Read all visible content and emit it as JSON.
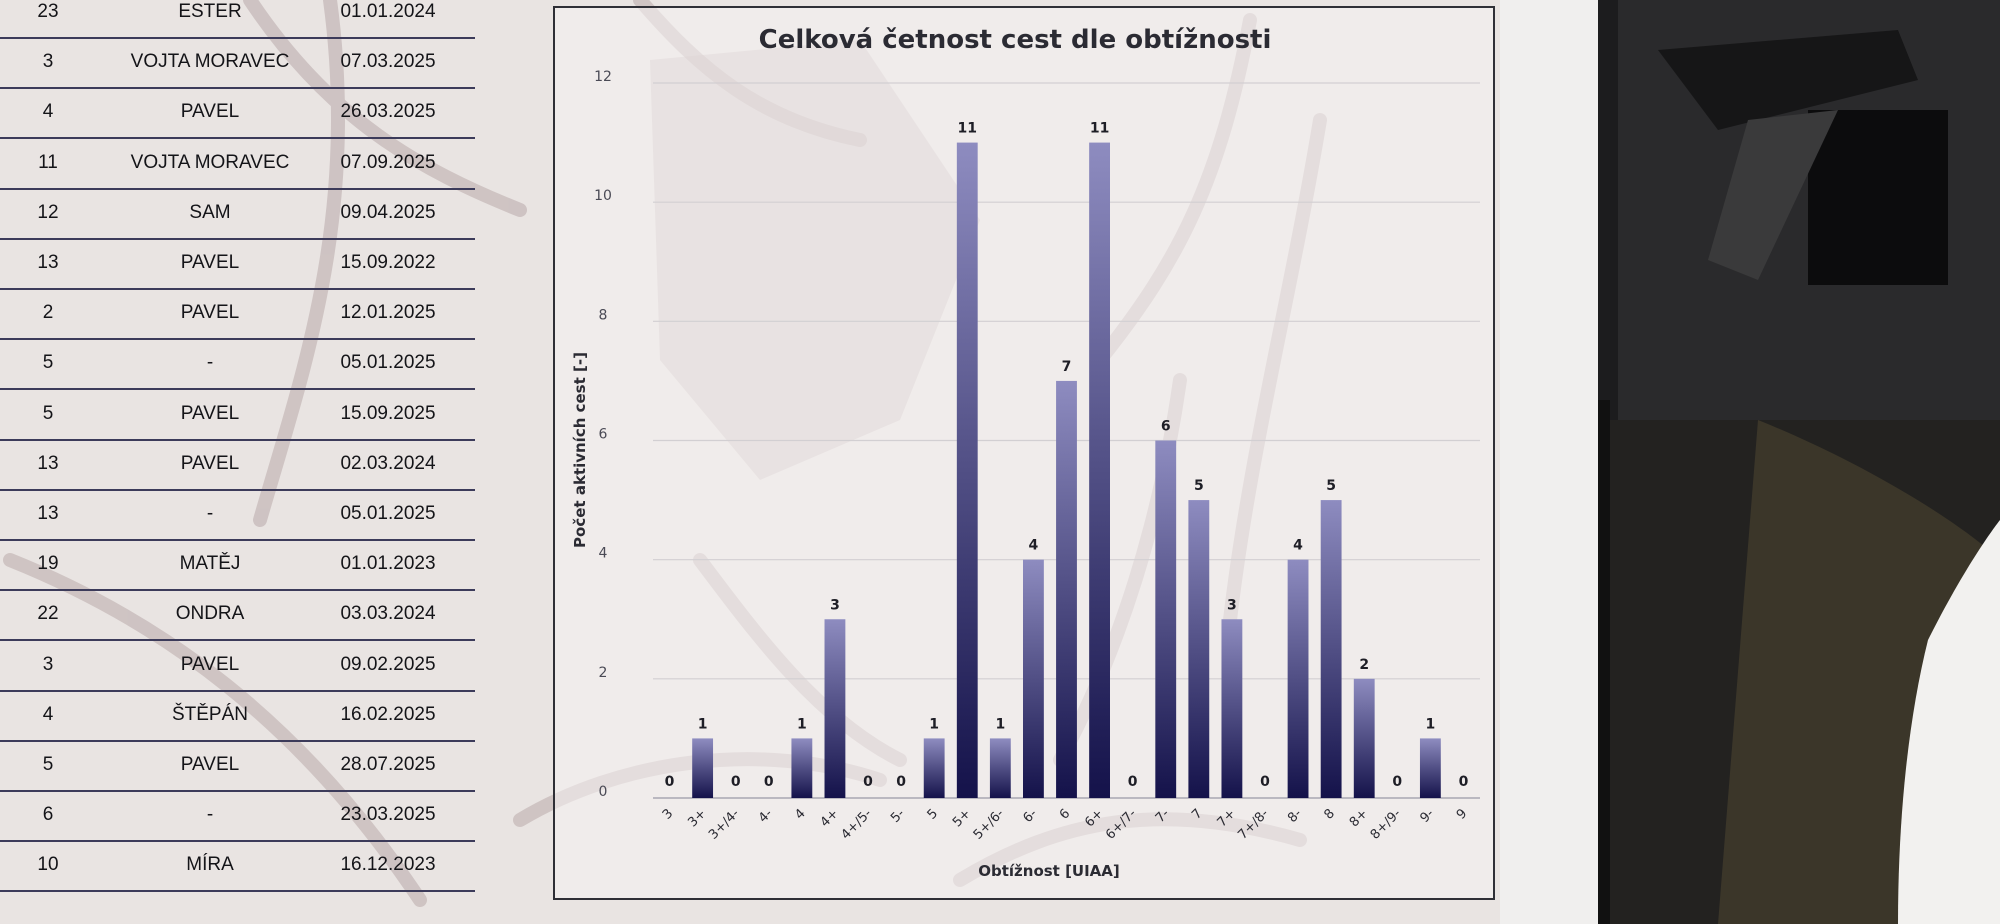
{
  "table": {
    "rows": [
      {
        "count": "23",
        "name": "ESTER",
        "date": "01.01.2024"
      },
      {
        "count": "3",
        "name": "VOJTA MORAVEC",
        "date": "07.03.2025"
      },
      {
        "count": "4",
        "name": "PAVEL",
        "date": "26.03.2025"
      },
      {
        "count": "11",
        "name": "VOJTA MORAVEC",
        "date": "07.09.2025"
      },
      {
        "count": "12",
        "name": "SAM",
        "date": "09.04.2025"
      },
      {
        "count": "13",
        "name": "PAVEL",
        "date": "15.09.2022"
      },
      {
        "count": "2",
        "name": "PAVEL",
        "date": "12.01.2025"
      },
      {
        "count": "5",
        "name": "-",
        "date": "05.01.2025"
      },
      {
        "count": "5",
        "name": "PAVEL",
        "date": "15.09.2025"
      },
      {
        "count": "13",
        "name": "PAVEL",
        "date": "02.03.2024"
      },
      {
        "count": "13",
        "name": "-",
        "date": "05.01.2025"
      },
      {
        "count": "19",
        "name": "MATĚJ",
        "date": "01.01.2023"
      },
      {
        "count": "22",
        "name": "ONDRA",
        "date": "03.03.2024"
      },
      {
        "count": "3",
        "name": "PAVEL",
        "date": "09.02.2025"
      },
      {
        "count": "4",
        "name": "ŠTĚPÁN",
        "date": "16.02.2025"
      },
      {
        "count": "5",
        "name": "PAVEL",
        "date": "28.07.2025"
      },
      {
        "count": "6",
        "name": "-",
        "date": "23.03.2025"
      },
      {
        "count": "10",
        "name": "MÍRA",
        "date": "16.12.2023"
      }
    ]
  },
  "colors": {
    "bar_top": "#8e8cc0",
    "bar_bottom": "#14124a",
    "panel_border": "#2f2f36",
    "table_rule": "#3c3b5a",
    "background": "#e9e4e2"
  },
  "chart_data": {
    "type": "bar",
    "title": "Celková četnost cest dle obtížnosti",
    "xlabel": "Obtížnost [UIAA]",
    "ylabel": "Počet aktivních cest [-]",
    "ylim": [
      0,
      12
    ],
    "yticks": [
      "0",
      "2",
      "4",
      "6",
      "8",
      "10",
      "12"
    ],
    "grid": true,
    "legend": "none",
    "categories": [
      "3",
      "3+",
      "3+/4-",
      "4-",
      "4",
      "4+",
      "4+/5-",
      "5-",
      "5",
      "5+",
      "5+/6-",
      "6-",
      "6",
      "6+",
      "6+/7-",
      "7-",
      "7",
      "7+",
      "7+/8-",
      "8-",
      "8",
      "8+",
      "8+/9-",
      "9-",
      "9"
    ],
    "values": [
      0,
      1,
      0,
      0,
      1,
      3,
      0,
      0,
      1,
      11,
      1,
      4,
      7,
      11,
      0,
      6,
      5,
      3,
      0,
      4,
      5,
      2,
      0,
      1,
      0
    ],
    "data_labels": [
      "0",
      "1",
      "0",
      "0",
      "1",
      "3",
      "0",
      "0",
      "1",
      "11",
      "1",
      "4",
      "7",
      "11",
      "0",
      "6",
      "5",
      "3",
      "0",
      "4",
      "5",
      "2",
      "0",
      "1",
      "0"
    ]
  }
}
